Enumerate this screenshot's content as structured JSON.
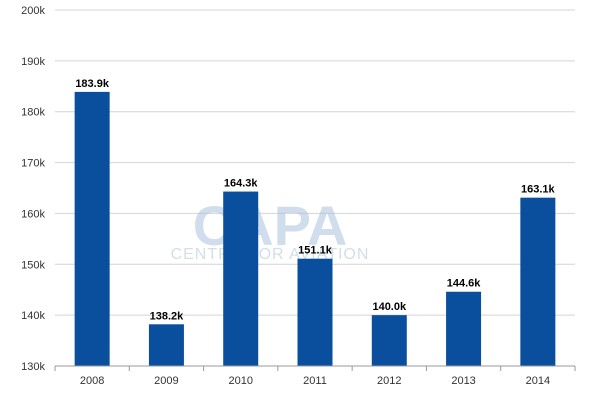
{
  "chart_data": {
    "type": "bar",
    "categories": [
      "2008",
      "2009",
      "2010",
      "2011",
      "2012",
      "2013",
      "2014"
    ],
    "values": [
      183.9,
      138.2,
      164.3,
      151.1,
      140.0,
      144.6,
      163.1
    ],
    "value_labels": [
      "183.9k",
      "138.2k",
      "164.3k",
      "151.1k",
      "140.0k",
      "144.6k",
      "163.1k"
    ],
    "yticks": [
      130,
      140,
      150,
      160,
      170,
      180,
      190,
      200
    ],
    "ytick_labels": [
      "130k",
      "140k",
      "150k",
      "160k",
      "170k",
      "180k",
      "190k",
      "200k"
    ],
    "ylim": [
      130,
      200
    ],
    "grid": true,
    "bar_color": "#0a4f9e",
    "title": "",
    "xlabel": "",
    "ylabel": ""
  },
  "watermark": {
    "brand": "CAPA",
    "subtitle": "CENTRE FOR AVIATION"
  }
}
